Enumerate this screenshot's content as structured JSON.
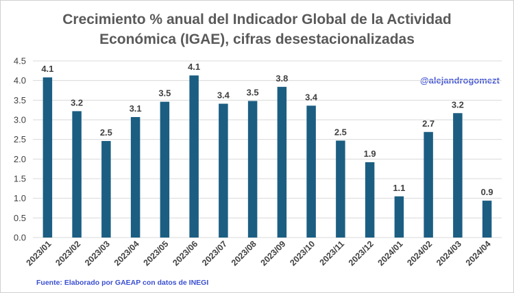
{
  "chart_data": {
    "type": "bar",
    "title": "Crecimiento % anual del Indicador Global de la Actividad Económica (IGAE), cifras desestacionalizadas",
    "title_lines": [
      "Crecimiento % anual del Indicador Global de la Actividad",
      "Económica (IGAE), cifras desestacionalizadas"
    ],
    "xlabel": "",
    "ylabel": "",
    "categories": [
      "2023/01",
      "2023/02",
      "2023/03",
      "2023/04",
      "2023/05",
      "2023/06",
      "2023/07",
      "2023/08",
      "2023/09",
      "2023/10",
      "2023/11",
      "2023/12",
      "2024/01",
      "2024/02",
      "2024/03",
      "2024/04"
    ],
    "values": [
      4.08,
      3.22,
      2.46,
      3.07,
      3.46,
      4.13,
      3.41,
      3.48,
      3.84,
      3.36,
      2.47,
      1.92,
      1.05,
      2.69,
      3.17,
      0.94
    ],
    "value_labels": [
      "4.1",
      "3.2",
      "2.5",
      "3.1",
      "3.5",
      "4.1",
      "3.4",
      "3.5",
      "3.8",
      "3.4",
      "2.5",
      "1.9",
      "1.1",
      "2.7",
      "3.2",
      "0.9"
    ],
    "ylim": [
      0,
      4.5
    ],
    "yticks": [
      "0.0",
      "0.5",
      "1.0",
      "1.5",
      "2.0",
      "2.5",
      "3.0",
      "3.5",
      "4.0",
      "4.5"
    ],
    "grid": true,
    "bar_color": "#1b5e82",
    "annotation": "@alejandrogomezt",
    "source": "Fuente: Elaborado por GAEAP con datos de INEGI"
  }
}
